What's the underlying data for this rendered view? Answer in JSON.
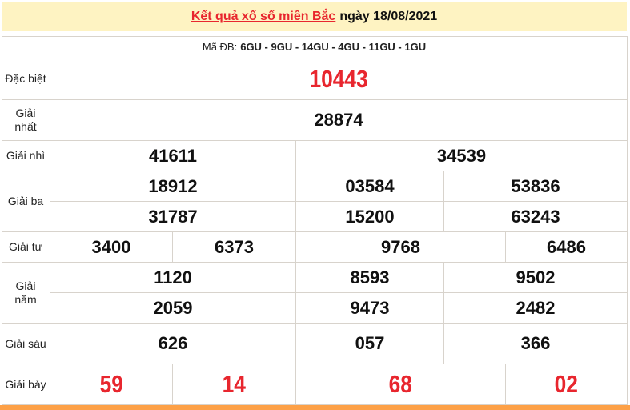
{
  "header": {
    "link_text": "Kết quả xổ số miền Bắc",
    "date_text": "ngày 18/08/2021"
  },
  "ma_db": {
    "label": "Mã ĐB:",
    "codes": "6GU - 9GU - 14GU - 4GU - 11GU - 1GU"
  },
  "prizes": {
    "dac_biet": {
      "label": "Đặc biệt",
      "numbers": [
        "10443"
      ]
    },
    "nhat": {
      "label": "Giải nhất",
      "numbers": [
        "28874"
      ]
    },
    "nhi": {
      "label": "Giải nhì",
      "numbers": [
        "41611",
        "34539"
      ]
    },
    "ba": {
      "label": "Giải ba",
      "numbers": [
        "18912",
        "03584",
        "53836",
        "31787",
        "15200",
        "63243"
      ]
    },
    "tu": {
      "label": "Giải tư",
      "numbers": [
        "3400",
        "6373",
        "9768",
        "6486"
      ]
    },
    "nam": {
      "label": "Giải năm",
      "numbers": [
        "1120",
        "8593",
        "9502",
        "2059",
        "9473",
        "2482"
      ]
    },
    "sau": {
      "label": "Giải sáu",
      "numbers": [
        "626",
        "057",
        "366"
      ]
    },
    "bay": {
      "label": "Giải bảy",
      "numbers": [
        "59",
        "14",
        "68",
        "02"
      ]
    }
  },
  "colors": {
    "accent_red": "#e8262e",
    "header_bg": "#fef3c2",
    "footer_bar": "#fda046"
  }
}
